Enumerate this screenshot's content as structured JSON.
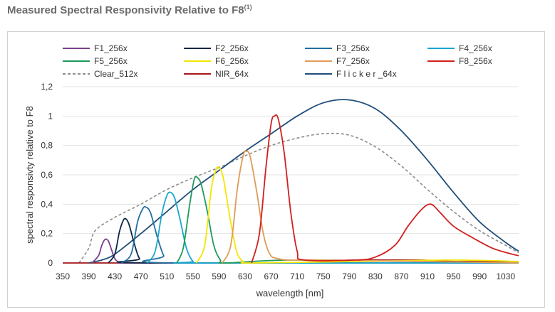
{
  "header": {
    "title": "Measured Spectral Responsivity Relative to F8",
    "footnote_mark": "(1)"
  },
  "chart_data": {
    "type": "line",
    "xlabel": "wavelength [nm]",
    "ylabel": "spectral responsivty relative to F8",
    "xlim": [
      350,
      1050
    ],
    "ylim": [
      0,
      1.2
    ],
    "x_ticks": [
      "350",
      "390",
      "430",
      "470",
      "510",
      "550",
      "590",
      "630",
      "670",
      "710",
      "750",
      "790",
      "830",
      "870",
      "910",
      "950",
      "990",
      "1030"
    ],
    "y_ticks": [
      "0",
      "0,2",
      "0,4",
      "0,6",
      "0,8",
      "1",
      "1,2"
    ],
    "grid": "horizontal",
    "legend_position": "top",
    "series": [
      {
        "name": "F1_256x",
        "color": "#7b3f8c",
        "dash": false,
        "points": [
          [
            395,
            0
          ],
          [
            405,
            0.05
          ],
          [
            410,
            0.12
          ],
          [
            415,
            0.16
          ],
          [
            420,
            0.15
          ],
          [
            425,
            0.09
          ],
          [
            430,
            0.03
          ],
          [
            438,
            0.005
          ],
          [
            460,
            0
          ],
          [
            700,
            0
          ],
          [
            1050,
            0
          ]
        ]
      },
      {
        "name": "F2_256x",
        "color": "#0d2645",
        "dash": false,
        "points": [
          [
            420,
            0
          ],
          [
            430,
            0.06
          ],
          [
            437,
            0.21
          ],
          [
            443,
            0.29
          ],
          [
            447,
            0.3
          ],
          [
            452,
            0.26
          ],
          [
            460,
            0.13
          ],
          [
            468,
            0.03
          ],
          [
            480,
            0
          ],
          [
            1050,
            0
          ]
        ]
      },
      {
        "name": "F3_256x",
        "color": "#236f9e",
        "dash": false,
        "points": [
          [
            440,
            0
          ],
          [
            455,
            0.06
          ],
          [
            465,
            0.28
          ],
          [
            473,
            0.37
          ],
          [
            478,
            0.38
          ],
          [
            485,
            0.34
          ],
          [
            495,
            0.18
          ],
          [
            505,
            0.05
          ],
          [
            515,
            0
          ],
          [
            1050,
            0
          ]
        ]
      },
      {
        "name": "F4_256x",
        "color": "#1ba6cf",
        "dash": false,
        "points": [
          [
            480,
            0
          ],
          [
            492,
            0.08
          ],
          [
            502,
            0.33
          ],
          [
            510,
            0.46
          ],
          [
            516,
            0.48
          ],
          [
            522,
            0.44
          ],
          [
            530,
            0.3
          ],
          [
            540,
            0.1
          ],
          [
            550,
            0.01
          ],
          [
            560,
            0
          ],
          [
            1050,
            0
          ]
        ]
      },
      {
        "name": "F5_256x",
        "color": "#1e9a5a",
        "dash": false,
        "points": [
          [
            525,
            0
          ],
          [
            535,
            0.1
          ],
          [
            545,
            0.4
          ],
          [
            552,
            0.57
          ],
          [
            557,
            0.58
          ],
          [
            563,
            0.53
          ],
          [
            572,
            0.35
          ],
          [
            582,
            0.12
          ],
          [
            592,
            0.02
          ],
          [
            600,
            0
          ],
          [
            700,
            0.02
          ],
          [
            900,
            0.01
          ],
          [
            1050,
            0
          ]
        ]
      },
      {
        "name": "F6_256x",
        "color": "#f2e600",
        "dash": false,
        "points": [
          [
            555,
            0
          ],
          [
            568,
            0.12
          ],
          [
            578,
            0.5
          ],
          [
            585,
            0.63
          ],
          [
            590,
            0.65
          ],
          [
            597,
            0.57
          ],
          [
            607,
            0.3
          ],
          [
            617,
            0.08
          ],
          [
            627,
            0.01
          ],
          [
            640,
            0
          ],
          [
            800,
            0.01
          ],
          [
            950,
            0.02
          ],
          [
            1050,
            0.01
          ]
        ]
      },
      {
        "name": "F7_256x",
        "color": "#e09b56",
        "dash": false,
        "points": [
          [
            595,
            0
          ],
          [
            608,
            0.12
          ],
          [
            618,
            0.5
          ],
          [
            627,
            0.73
          ],
          [
            632,
            0.76
          ],
          [
            638,
            0.72
          ],
          [
            648,
            0.48
          ],
          [
            658,
            0.2
          ],
          [
            668,
            0.06
          ],
          [
            680,
            0.03
          ],
          [
            700,
            0.02
          ],
          [
            760,
            0.02
          ],
          [
            1050,
            0
          ]
        ]
      },
      {
        "name": "F8_256x",
        "color": "#d11f1f",
        "dash": false,
        "points": [
          [
            640,
            0
          ],
          [
            652,
            0.2
          ],
          [
            662,
            0.65
          ],
          [
            670,
            0.95
          ],
          [
            675,
            1.0
          ],
          [
            681,
            0.98
          ],
          [
            690,
            0.75
          ],
          [
            700,
            0.35
          ],
          [
            710,
            0.08
          ],
          [
            720,
            0.02
          ],
          [
            800,
            0.02
          ],
          [
            830,
            0.04
          ],
          [
            860,
            0.12
          ],
          [
            880,
            0.25
          ],
          [
            900,
            0.36
          ],
          [
            915,
            0.4
          ],
          [
            930,
            0.34
          ],
          [
            950,
            0.25
          ],
          [
            980,
            0.17
          ],
          [
            1010,
            0.1
          ],
          [
            1040,
            0.06
          ],
          [
            1050,
            0.05
          ]
        ]
      },
      {
        "name": "Clear_512x",
        "color": "#8c8c8c",
        "dash": true,
        "points": [
          [
            375,
            0
          ],
          [
            390,
            0.1
          ],
          [
            400,
            0.22
          ],
          [
            430,
            0.31
          ],
          [
            470,
            0.4
          ],
          [
            510,
            0.5
          ],
          [
            550,
            0.58
          ],
          [
            590,
            0.65
          ],
          [
            630,
            0.73
          ],
          [
            670,
            0.8
          ],
          [
            710,
            0.85
          ],
          [
            750,
            0.88
          ],
          [
            790,
            0.87
          ],
          [
            830,
            0.79
          ],
          [
            870,
            0.66
          ],
          [
            910,
            0.5
          ],
          [
            950,
            0.35
          ],
          [
            990,
            0.22
          ],
          [
            1030,
            0.12
          ],
          [
            1050,
            0.07
          ]
        ]
      },
      {
        "name": "NIR_64x",
        "color": "#a61619",
        "dash": false,
        "points": [
          [
            350,
            0
          ],
          [
            700,
            0
          ],
          [
            750,
            0.01
          ],
          [
            800,
            0.02
          ],
          [
            850,
            0.02
          ],
          [
            900,
            0.02
          ],
          [
            950,
            0.01
          ],
          [
            1000,
            0.01
          ],
          [
            1050,
            0.01
          ]
        ]
      },
      {
        "name": "F l i c k e r _64x",
        "color": "#1f4e79",
        "dash": false,
        "points": [
          [
            390,
            0
          ],
          [
            410,
            0.02
          ],
          [
            430,
            0.06
          ],
          [
            470,
            0.2
          ],
          [
            510,
            0.35
          ],
          [
            550,
            0.5
          ],
          [
            590,
            0.63
          ],
          [
            630,
            0.76
          ],
          [
            670,
            0.88
          ],
          [
            710,
            1.0
          ],
          [
            750,
            1.09
          ],
          [
            790,
            1.11
          ],
          [
            830,
            1.05
          ],
          [
            870,
            0.9
          ],
          [
            910,
            0.7
          ],
          [
            950,
            0.48
          ],
          [
            990,
            0.28
          ],
          [
            1030,
            0.14
          ],
          [
            1050,
            0.08
          ]
        ]
      }
    ]
  }
}
